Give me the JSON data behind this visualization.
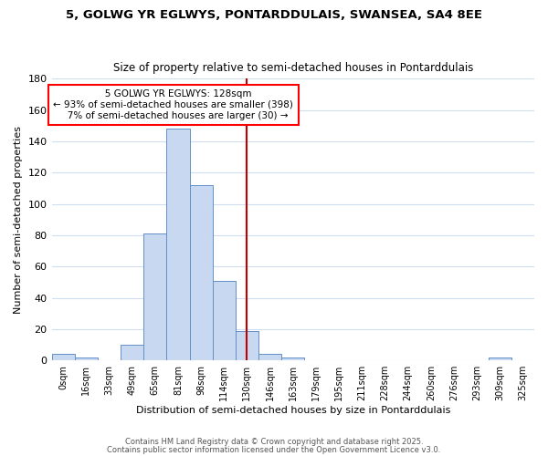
{
  "title1": "5, GOLWG YR EGLWYS, PONTARDDULAIS, SWANSEA, SA4 8EE",
  "title2": "Size of property relative to semi-detached houses in Pontarddulais",
  "xlabel": "Distribution of semi-detached houses by size in Pontarddulais",
  "ylabel": "Number of semi-detached properties",
  "bin_labels": [
    "0sqm",
    "16sqm",
    "33sqm",
    "49sqm",
    "65sqm",
    "81sqm",
    "98sqm",
    "114sqm",
    "130sqm",
    "146sqm",
    "163sqm",
    "179sqm",
    "195sqm",
    "211sqm",
    "228sqm",
    "244sqm",
    "260sqm",
    "276sqm",
    "293sqm",
    "309sqm",
    "325sqm"
  ],
  "bar_heights": [
    4,
    2,
    0,
    10,
    81,
    148,
    112,
    51,
    19,
    4,
    2,
    0,
    0,
    0,
    0,
    0,
    0,
    0,
    0,
    2,
    0
  ],
  "bar_color": "#c8d8f0",
  "bar_edgecolor": "#6090c8",
  "vline_x_index": 8.0,
  "annotation_title": "5 GOLWG YR EGLWYS: 128sqm",
  "annotation_line1": "← 93% of semi-detached houses are smaller (398)",
  "annotation_line2": "7% of semi-detached houses are larger (30) →",
  "annotation_box_color": "white",
  "annotation_box_edgecolor": "red",
  "vline_color": "#c00000",
  "ylim": [
    0,
    180
  ],
  "yticks": [
    0,
    20,
    40,
    60,
    80,
    100,
    120,
    140,
    160,
    180
  ],
  "footer1": "Contains HM Land Registry data © Crown copyright and database right 2025.",
  "footer2": "Contains public sector information licensed under the Open Government Licence v3.0.",
  "bg_color": "#ffffff",
  "plot_bg_color": "#ffffff",
  "grid_color": "#d0ddf0"
}
